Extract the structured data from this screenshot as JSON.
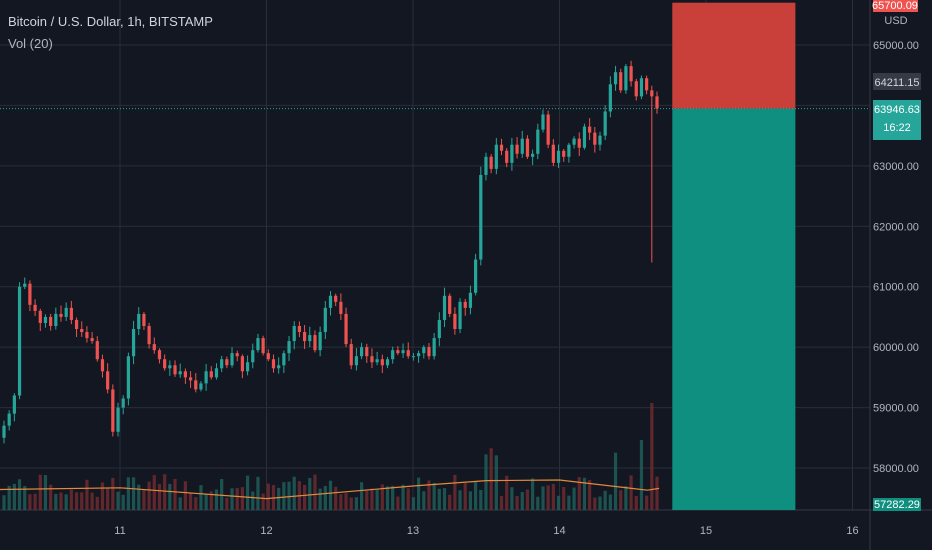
{
  "header": {
    "title": "Bitcoin / U.S. Dollar, 1h, BITSTAMP",
    "volume_label": "Vol (20)"
  },
  "price_axis": {
    "currency": "USD",
    "top_badge": "65700.09",
    "ref_badge": "64211.15",
    "last_price": "63946.63",
    "countdown": "16:22",
    "bottom_badge": "57282.29"
  },
  "colors": {
    "background": "#131722",
    "up": "#26a69a",
    "down": "#ef5350",
    "stop_zone": "#c9403a",
    "target_zone": "#0f8f7f",
    "volume_ma": "#e38b3c"
  },
  "chart_data": {
    "type": "candlestick",
    "title": "Bitcoin / U.S. Dollar, 1h, BITSTAMP",
    "ylim": [
      57282.29,
      65700.09
    ],
    "y_ticks": [
      58000,
      59000,
      60000,
      61000,
      62000,
      63000,
      64000,
      65000
    ],
    "y_tick_labels": [
      "58000.00",
      "59000.00",
      "60000.00",
      "61000.00",
      "62000.00",
      "63000.00",
      "64000.00",
      "65000.00"
    ],
    "x_ticks": [
      11,
      12,
      13,
      14,
      15,
      16
    ],
    "x_tick_labels": [
      "11",
      "12",
      "13",
      "14",
      "15",
      "16"
    ],
    "x_range": [
      10.15,
      16.3
    ],
    "grid": true,
    "closes": [
      58700,
      58900,
      59200,
      61000,
      61050,
      60700,
      60600,
      60400,
      60500,
      60350,
      60550,
      60500,
      60650,
      60450,
      60300,
      60250,
      60150,
      60100,
      59800,
      59600,
      59300,
      58600,
      59000,
      59150,
      59850,
      60300,
      60550,
      60350,
      60050,
      59950,
      59800,
      59650,
      59700,
      59550,
      59600,
      59500,
      59450,
      59300,
      59400,
      59600,
      59500,
      59650,
      59800,
      59700,
      59900,
      59850,
      59600,
      59750,
      59950,
      60150,
      59900,
      59800,
      59650,
      59700,
      59900,
      60100,
      60350,
      60250,
      60100,
      60200,
      59950,
      60250,
      60650,
      60850,
      60750,
      60550,
      60050,
      59700,
      59850,
      60000,
      59850,
      59750,
      59800,
      59700,
      59800,
      59950,
      59900,
      59950,
      59850,
      59850,
      59900,
      60000,
      59850,
      60150,
      60450,
      60850,
      60550,
      60300,
      60750,
      60650,
      60900,
      61450,
      62850,
      63150,
      62950,
      63350,
      63250,
      63050,
      63350,
      63200,
      63450,
      63150,
      63200,
      63600,
      63850,
      63350,
      63050,
      63250,
      63150,
      63350,
      63450,
      63300,
      63650,
      63550,
      63350,
      63500,
      63900,
      64350,
      64550,
      64250,
      64650,
      64400,
      64150,
      64450,
      64250,
      64150,
      63950
    ],
    "volume_ma": {
      "name": "Vol (20)",
      "x": [
        10.15,
        11.0,
        12.0,
        13.0,
        13.5,
        14.0,
        14.6,
        14.68
      ],
      "values": [
        0.34,
        0.37,
        0.19,
        0.4,
        0.49,
        0.5,
        0.33,
        0.36
      ]
    },
    "position": {
      "type": "short",
      "entry": 63946.63,
      "stop": 65700.09,
      "target": 57282.29,
      "x_start": 14.77,
      "x_end": 15.61
    }
  }
}
